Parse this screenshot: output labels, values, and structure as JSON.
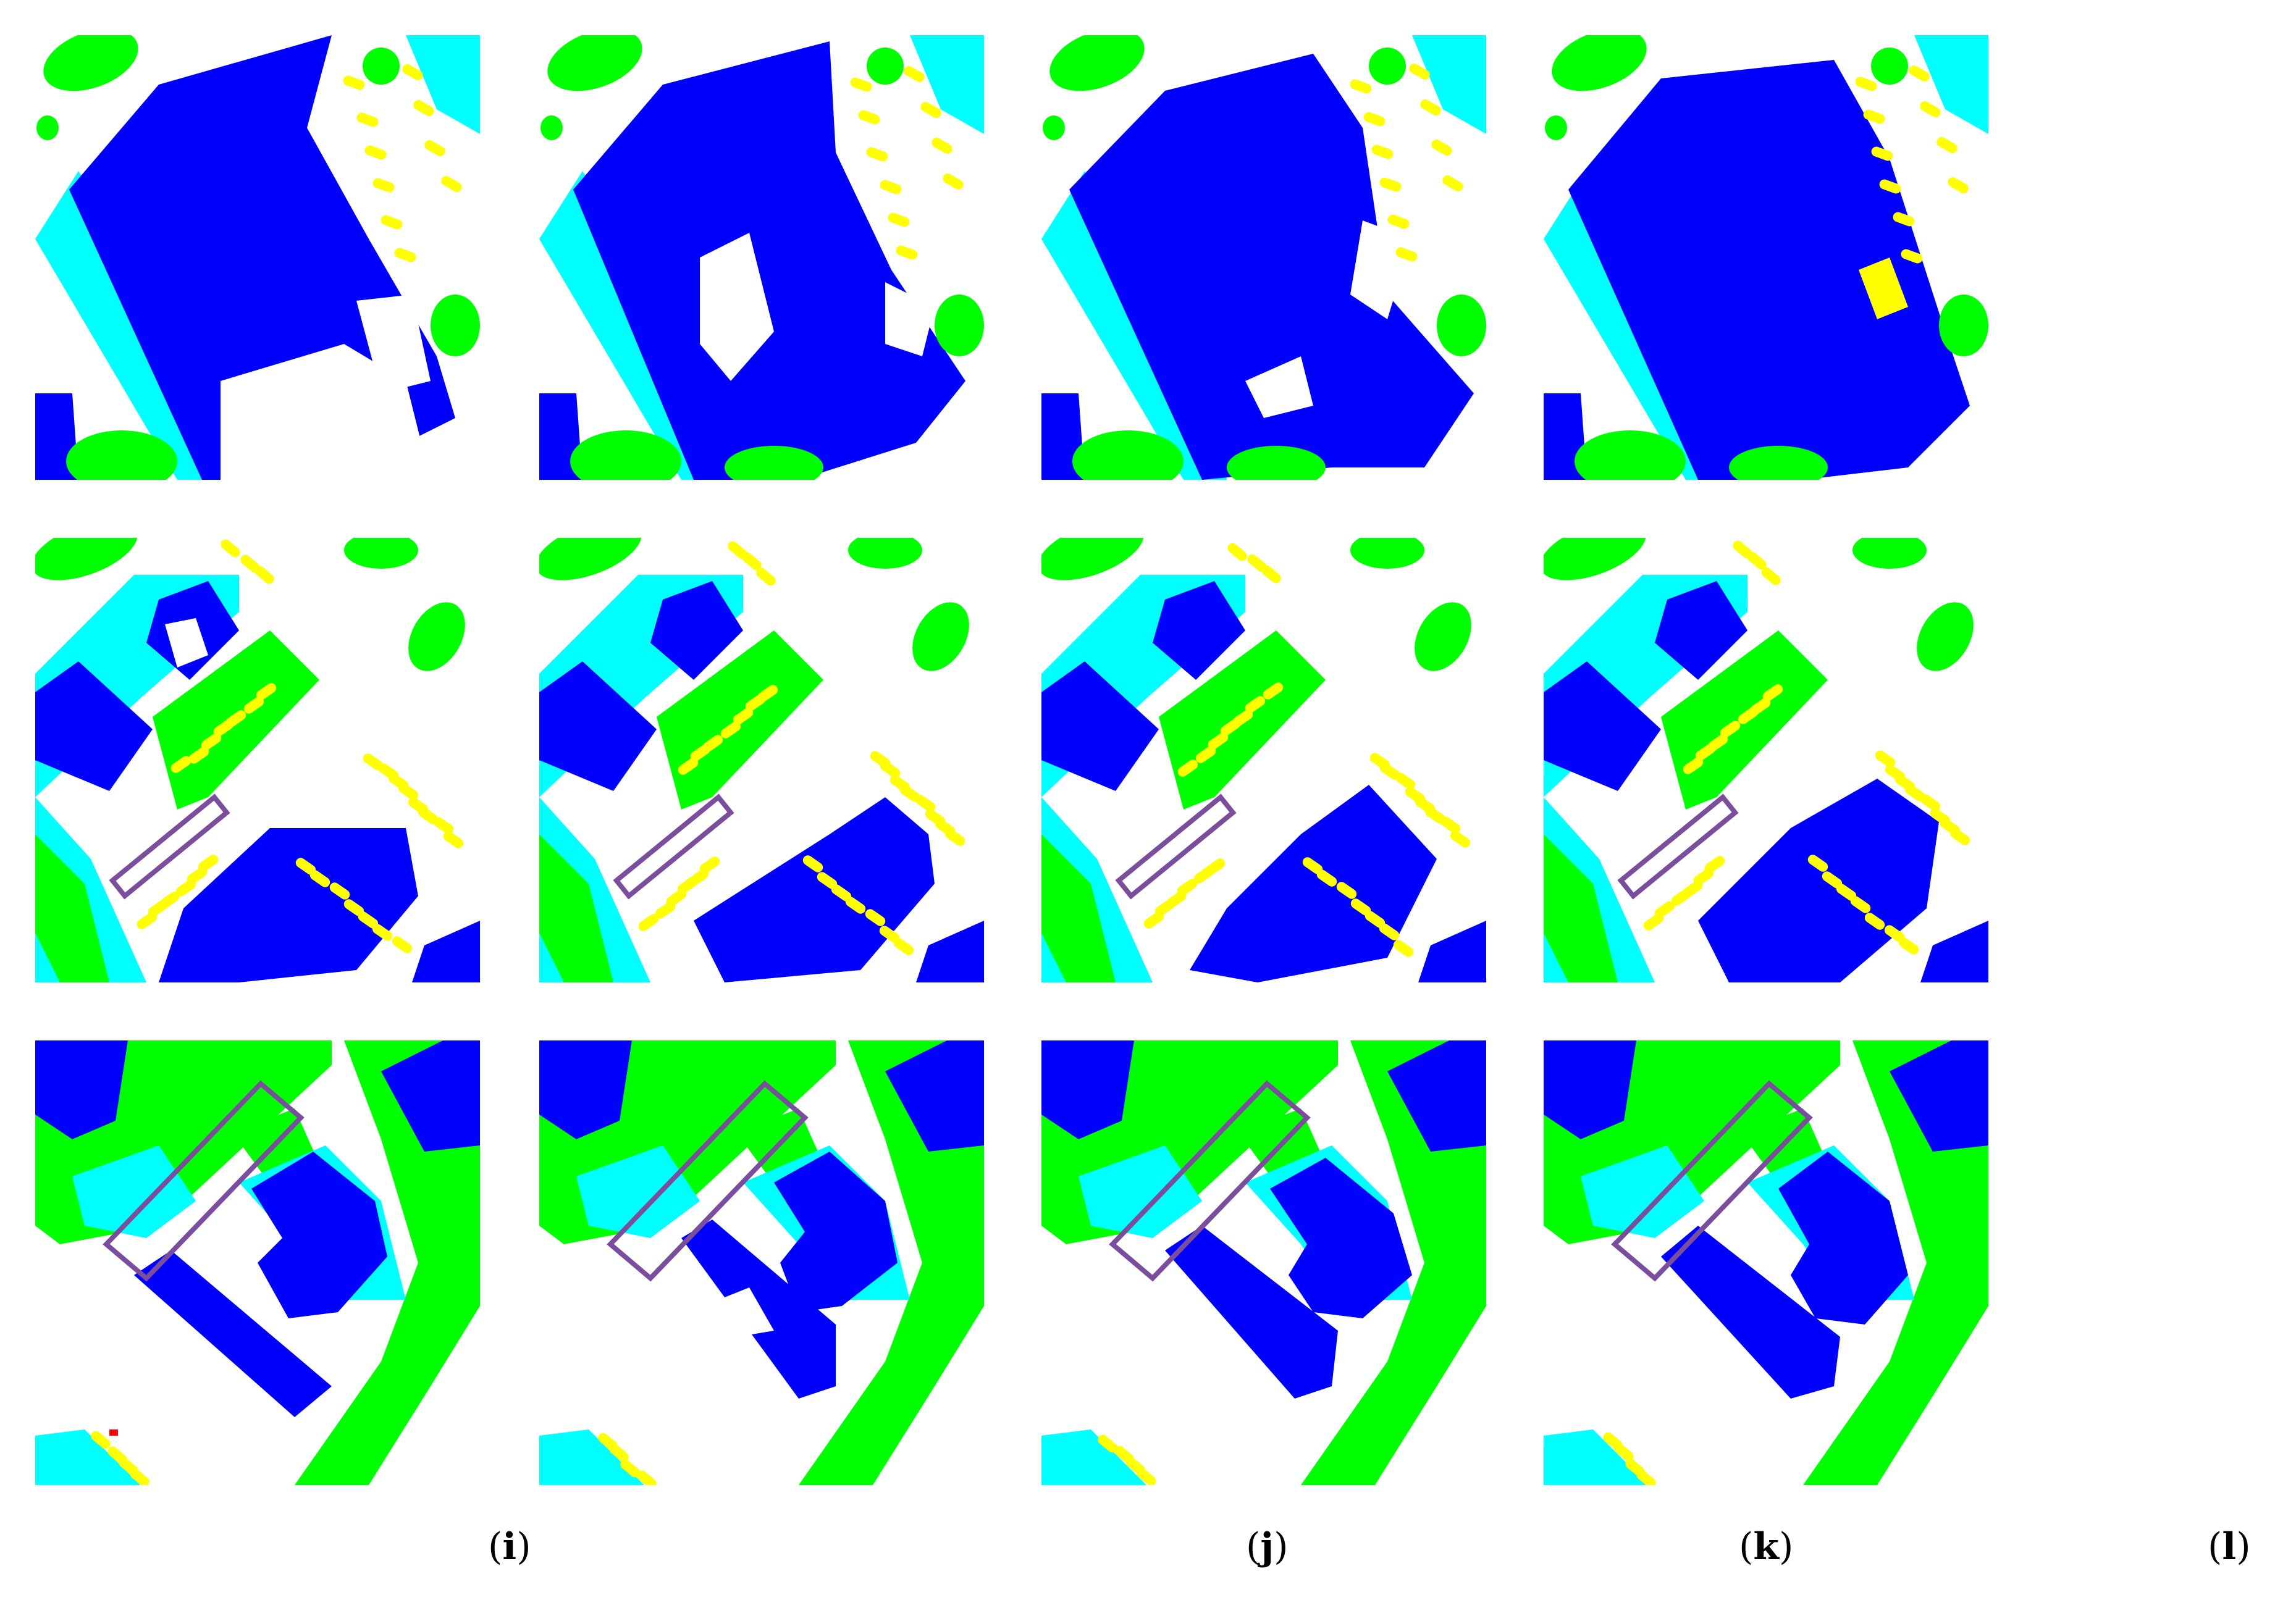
{
  "colors": {
    "building": "#0000ff",
    "low_vegetation": "#00ffff",
    "tree": "#00ff00",
    "car": "#ffff00",
    "impervious": "#ffffff",
    "clutter": "#ff0000",
    "highlight_box": "#7a4e9c"
  },
  "grid": {
    "rows": 3,
    "columns": 4
  },
  "captions": [
    {
      "open": "(",
      "letter": "i",
      "close": ")"
    },
    {
      "open": "(",
      "letter": "j",
      "close": ")"
    },
    {
      "open": "(",
      "letter": "k",
      "close": ")"
    },
    {
      "open": "(",
      "letter": "l",
      "close": ")"
    }
  ]
}
